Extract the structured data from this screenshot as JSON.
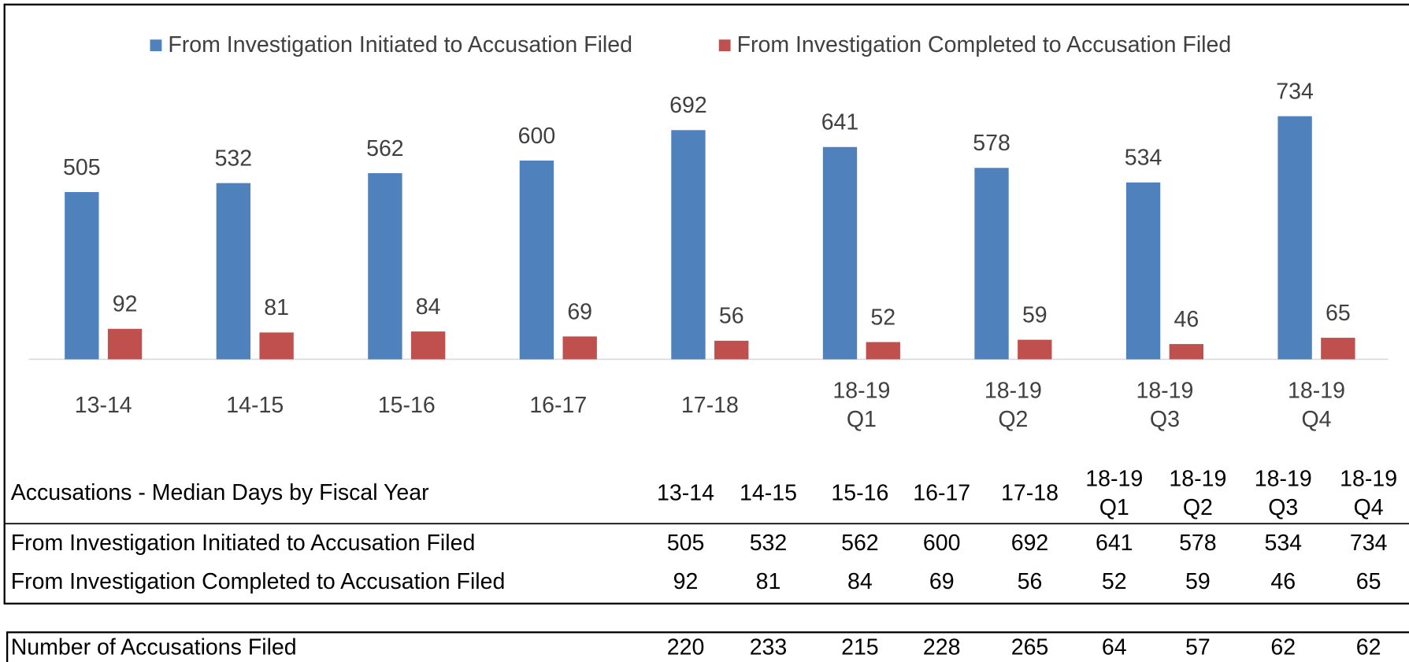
{
  "chart_data": {
    "type": "bar",
    "categories": [
      "13-14",
      "14-15",
      "15-16",
      "16-17",
      "17-18",
      "18-19 Q1",
      "18-19 Q2",
      "18-19 Q3",
      "18-19 Q4"
    ],
    "series": [
      {
        "name": "From Investigation Initiated to Accusation Filed",
        "color": "#4f81bd",
        "values": [
          505,
          532,
          562,
          600,
          692,
          641,
          578,
          534,
          734
        ]
      },
      {
        "name": "From Investigation Completed to Accusation Filed",
        "color": "#c0504d",
        "values": [
          92,
          81,
          84,
          69,
          56,
          52,
          59,
          46,
          65
        ]
      }
    ],
    "ylim": [
      0,
      800
    ],
    "legend": "top"
  },
  "table": {
    "title": "Accusations - Median Days by Fiscal Year",
    "count_row": {
      "label": "Number of Accusations Filed",
      "values": [
        220,
        233,
        215,
        228,
        265,
        64,
        57,
        62,
        62
      ]
    }
  }
}
